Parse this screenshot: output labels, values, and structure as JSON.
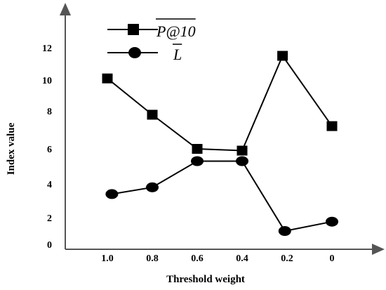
{
  "chart_data": {
    "type": "line",
    "xlabel": "Threshold weight",
    "ylabel": "Index value",
    "x_tick_labels": [
      "1.0",
      "0.8",
      "0.6",
      "0.4",
      "0.2",
      "0"
    ],
    "y_tick_labels": [
      "0",
      "2",
      "4",
      "6",
      "8",
      "10",
      "12"
    ],
    "x_direction": "decreasing",
    "grid": false,
    "legend_position": "top-left",
    "series": [
      {
        "name": "P@10",
        "overline": true,
        "marker": "square",
        "color": "#000000",
        "x": [
          1.0,
          0.8,
          0.6,
          0.4,
          0.22,
          0.0
        ],
        "values": [
          10.1,
          7.8,
          6.0,
          5.9,
          11.5,
          7.2
        ]
      },
      {
        "name": "L",
        "overline": true,
        "marker": "circle",
        "color": "#000000",
        "x": [
          0.98,
          0.8,
          0.6,
          0.4,
          0.21,
          0.0
        ],
        "values": [
          3.4,
          3.8,
          5.3,
          5.3,
          1.0,
          1.7
        ]
      }
    ]
  }
}
